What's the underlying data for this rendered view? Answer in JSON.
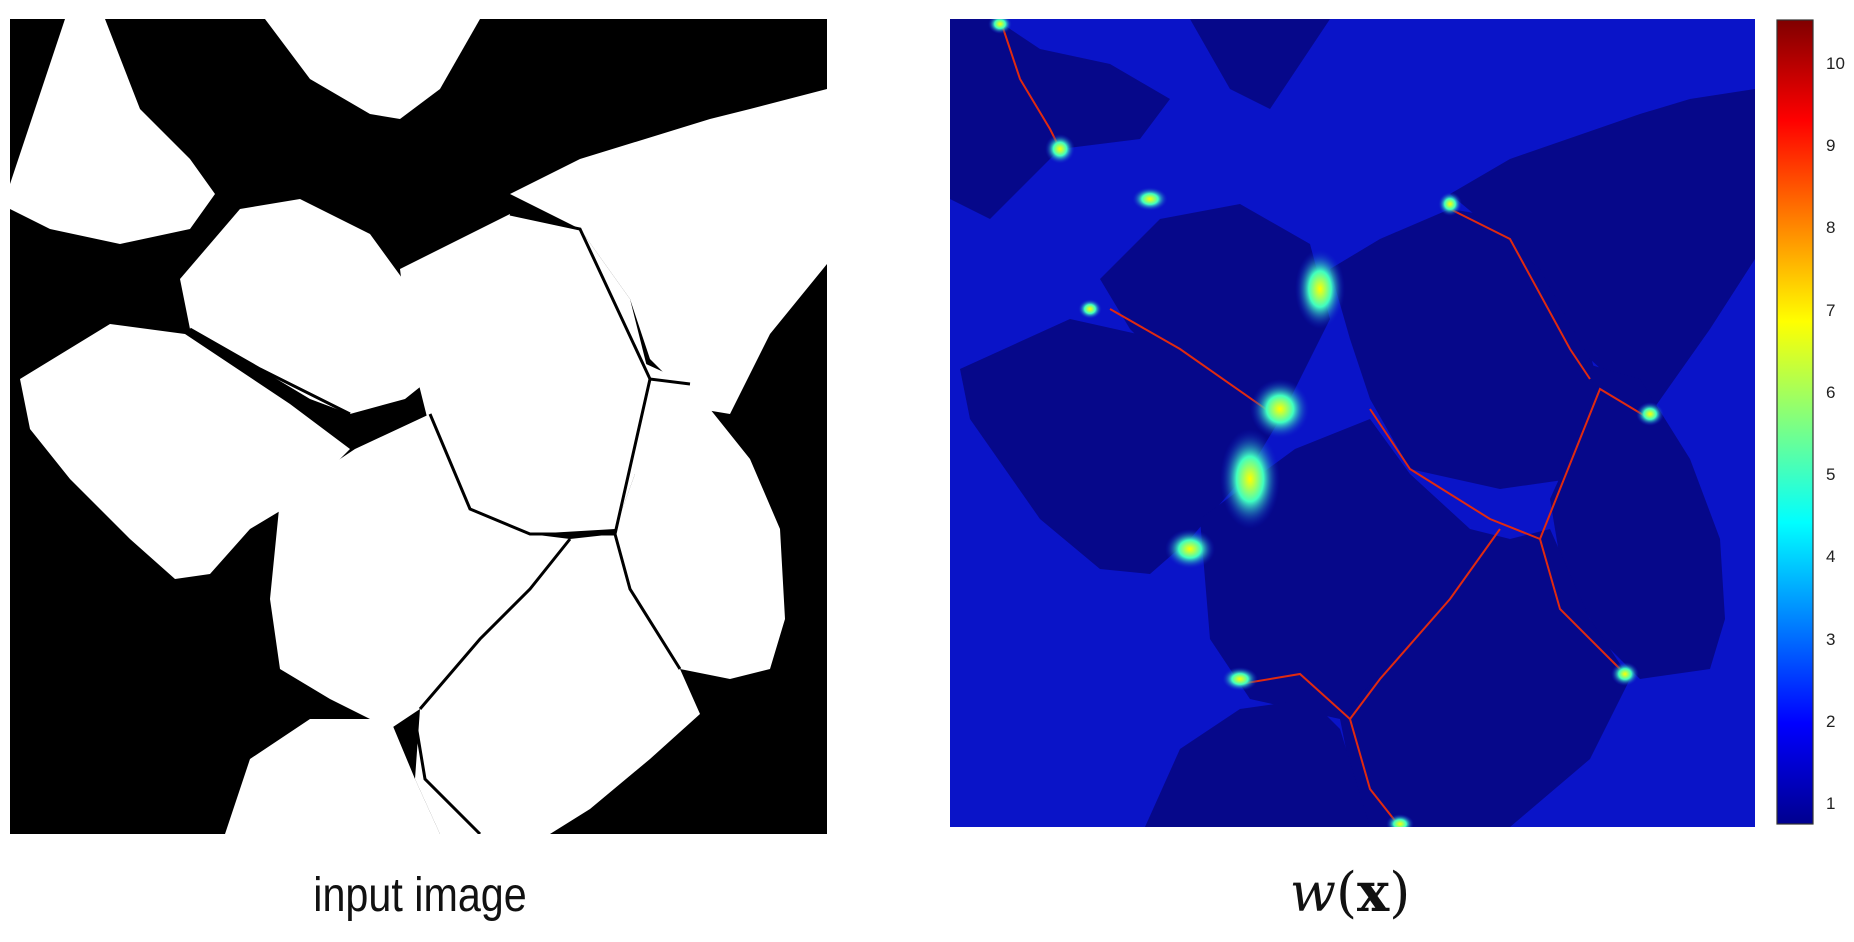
{
  "captions": {
    "left": "input image",
    "right_func": "w",
    "right_arg": "x"
  },
  "colorbar": {
    "ticks": [
      "1",
      "2",
      "3",
      "4",
      "5",
      "6",
      "7",
      "8",
      "9",
      "10"
    ],
    "colors": [
      "#00008f",
      "#0000ff",
      "#0080ff",
      "#00ffff",
      "#80ff80",
      "#ffff00",
      "#ff8000",
      "#ff0000",
      "#800000"
    ]
  },
  "colors": {
    "cell_left": "#ffffff",
    "background_left": "#000000",
    "background_right": "#0a14c8",
    "cell_right": "#06088a",
    "border_right": "#e02a10"
  }
}
